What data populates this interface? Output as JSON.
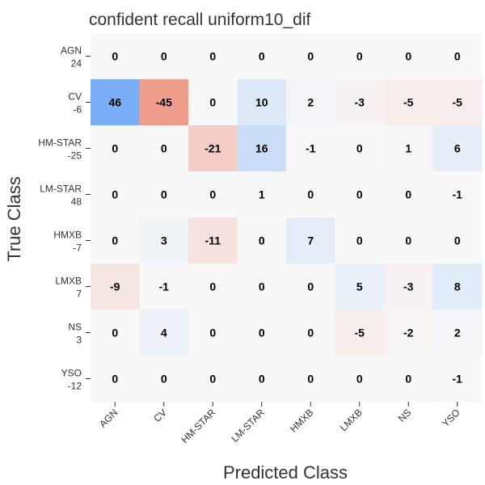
{
  "chart_data": {
    "type": "heatmap",
    "title": "confident recall uniform10_dif",
    "xlabel": "Predicted Class",
    "ylabel": "True Class",
    "x_categories": [
      "AGN",
      "CV",
      "HM-STAR",
      "LM-STAR",
      "HMXB",
      "LMXB",
      "NS",
      "YSO"
    ],
    "y_categories": [
      "AGN",
      "CV",
      "HM-STAR",
      "LM-STAR",
      "HMXB",
      "LMXB",
      "NS",
      "YSO"
    ],
    "y_sublabels": [
      "24",
      "-6",
      "-25",
      "48",
      "-7",
      "7",
      "3",
      "-12"
    ],
    "values": [
      [
        0,
        0,
        0,
        0,
        0,
        0,
        0,
        0
      ],
      [
        46,
        -45,
        0,
        10,
        2,
        -3,
        -5,
        -5
      ],
      [
        0,
        0,
        -21,
        16,
        -1,
        0,
        1,
        6
      ],
      [
        0,
        0,
        0,
        1,
        0,
        0,
        0,
        -1
      ],
      [
        0,
        3,
        -11,
        0,
        7,
        0,
        0,
        0
      ],
      [
        -9,
        -1,
        0,
        0,
        0,
        5,
        -3,
        8
      ],
      [
        0,
        4,
        0,
        0,
        0,
        -5,
        -2,
        2
      ],
      [
        0,
        0,
        0,
        0,
        0,
        0,
        0,
        -1
      ]
    ],
    "color_range": [
      -50,
      50
    ],
    "colors": {
      "positive": "#6fa8f6",
      "zero": "#f8f8f8",
      "negative": "#ee9381"
    },
    "grid": false,
    "legend": "none"
  }
}
